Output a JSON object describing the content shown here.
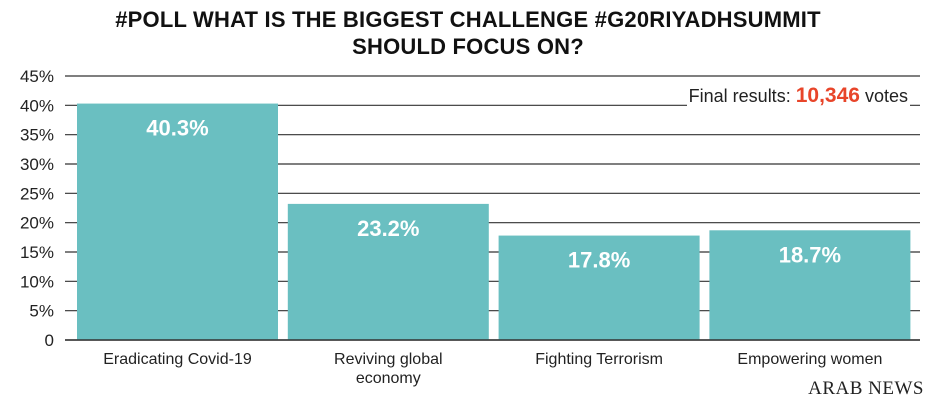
{
  "chart_data": {
    "type": "bar",
    "title_line1": "#POLL WHAT IS THE BIGGEST CHALLENGE #G20RIYADHSUMMIT",
    "title_line2": "SHOULD FOCUS ON?",
    "categories": [
      [
        "Eradicating Covid-19"
      ],
      [
        "Reviving global",
        "economy"
      ],
      [
        "Fighting Terrorism"
      ],
      [
        "Empowering women"
      ]
    ],
    "values": [
      40.3,
      23.2,
      17.8,
      18.7
    ],
    "value_labels": [
      "40.3%",
      "23.2%",
      "17.8%",
      "18.7%"
    ],
    "yticks": [
      "0",
      "5%",
      "10%",
      "15%",
      "20%",
      "25%",
      "30%",
      "35%",
      "40%",
      "45%"
    ],
    "ylim": [
      0,
      45
    ],
    "xlabel": "",
    "ylabel": "",
    "grid": true,
    "bar_color": "#6abfc1"
  },
  "annotation": {
    "prefix": "Final results:",
    "count": "10,346",
    "suffix": "votes",
    "count_color": "#e8452a"
  },
  "logo": "ARAB NEWS"
}
